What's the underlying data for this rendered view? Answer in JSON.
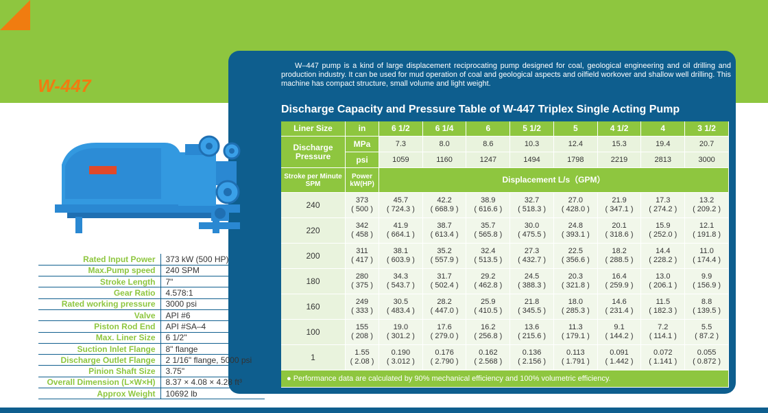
{
  "model": "W-447",
  "intro": "W–447 pump is a kind of large displacement reciprocating pump designed for coal, geological engineering and oil drilling and production industry. It can be used for mud operation of coal and geological aspects and oilfield workover and shallow well drilling. This machine has compact structure, small volume and light weight.",
  "table_title": "Discharge Capacity and Pressure Table of W-447 Triplex Single Acting Pump",
  "table": {
    "liner_label": "Liner Size",
    "liner_unit": "in",
    "liner_sizes": [
      "6 1/2",
      "6 1/4",
      "6",
      "5 1/2",
      "5",
      "4 1/2",
      "4",
      "3 1/2"
    ],
    "pressure_label": "Discharge Pressure",
    "mpa_label": "MPa",
    "psi_label": "psi",
    "mpa_values": [
      "7.3",
      "8.0",
      "8.6",
      "10.3",
      "12.4",
      "15.3",
      "19.4",
      "20.7"
    ],
    "psi_values": [
      "1059",
      "1160",
      "1247",
      "1494",
      "1798",
      "2219",
      "2813",
      "3000"
    ],
    "spm_label_line1": "Stroke per Minute",
    "spm_label_line2": "SPM",
    "power_label_line1": "Power",
    "power_label_line2": "kW(HP)",
    "displacement_label": "Displacement   L/s（GPM）",
    "rows": [
      {
        "spm": "240",
        "kw": "373",
        "hp": "( 500 )",
        "cells": [
          [
            "45.7",
            "( 724.3 )"
          ],
          [
            "42.2",
            "( 668.9 )"
          ],
          [
            "38.9",
            "( 616.6 )"
          ],
          [
            "32.7",
            "( 518.3 )"
          ],
          [
            "27.0",
            "( 428.0 )"
          ],
          [
            "21.9",
            "( 347.1 )"
          ],
          [
            "17.3",
            "( 274.2 )"
          ],
          [
            "13.2",
            "( 209.2 )"
          ]
        ]
      },
      {
        "spm": "220",
        "kw": "342",
        "hp": "( 458 )",
        "cells": [
          [
            "41.9",
            "( 664.1 )"
          ],
          [
            "38.7",
            "( 613.4 )"
          ],
          [
            "35.7",
            "( 565.8 )"
          ],
          [
            "30.0",
            "( 475.5 )"
          ],
          [
            "24.8",
            "( 393.1 )"
          ],
          [
            "20.1",
            "( 318.6 )"
          ],
          [
            "15.9",
            "( 252.0 )"
          ],
          [
            "12.1",
            "( 191.8 )"
          ]
        ]
      },
      {
        "spm": "200",
        "kw": "311",
        "hp": "( 417 )",
        "cells": [
          [
            "38.1",
            "( 603.9 )"
          ],
          [
            "35.2",
            "( 557.9 )"
          ],
          [
            "32.4",
            "( 513.5 )"
          ],
          [
            "27.3",
            "( 432.7 )"
          ],
          [
            "22.5",
            "( 356.6 )"
          ],
          [
            "18.2",
            "( 288.5 )"
          ],
          [
            "14.4",
            "( 228.2 )"
          ],
          [
            "11.0",
            "( 174.4 )"
          ]
        ]
      },
      {
        "spm": "180",
        "kw": "280",
        "hp": "( 375 )",
        "cells": [
          [
            "34.3",
            "( 543.7 )"
          ],
          [
            "31.7",
            "( 502.4 )"
          ],
          [
            "29.2",
            "( 462.8 )"
          ],
          [
            "24.5",
            "( 388.3 )"
          ],
          [
            "20.3",
            "( 321.8 )"
          ],
          [
            "16.4",
            "( 259.9 )"
          ],
          [
            "13.0",
            "( 206.1 )"
          ],
          [
            "9.9",
            "( 156.9 )"
          ]
        ]
      },
      {
        "spm": "160",
        "kw": "249",
        "hp": "( 333 )",
        "cells": [
          [
            "30.5",
            "( 483.4 )"
          ],
          [
            "28.2",
            "( 447.0 )"
          ],
          [
            "25.9",
            "( 410.5 )"
          ],
          [
            "21.8",
            "( 345.5 )"
          ],
          [
            "18.0",
            "( 285.3 )"
          ],
          [
            "14.6",
            "( 231.4 )"
          ],
          [
            "11.5",
            "( 182.3 )"
          ],
          [
            "8.8",
            "( 139.5 )"
          ]
        ]
      },
      {
        "spm": "100",
        "kw": "155",
        "hp": "( 208 )",
        "cells": [
          [
            "19.0",
            "( 301.2 )"
          ],
          [
            "17.6",
            "( 279.0 )"
          ],
          [
            "16.2",
            "( 256.8 )"
          ],
          [
            "13.6",
            "( 215.6 )"
          ],
          [
            "11.3",
            "( 179.1 )"
          ],
          [
            "9.1",
            "( 144.2 )"
          ],
          [
            "7.2",
            "( 114.1 )"
          ],
          [
            "5.5",
            "( 87.2 )"
          ]
        ]
      },
      {
        "spm": "1",
        "kw": "1.55",
        "hp": "( 2.08 )",
        "cells": [
          [
            "0.190",
            "( 3.012 )"
          ],
          [
            "0.176",
            "( 2.790 )"
          ],
          [
            "0.162",
            "( 2.568 )"
          ],
          [
            "0.136",
            "( 2.156 )"
          ],
          [
            "0.113",
            "( 1.791 )"
          ],
          [
            "0.091",
            "( 1.442 )"
          ],
          [
            "0.072",
            "( 1.141 )"
          ],
          [
            "0.055",
            "( 0.872 )"
          ]
        ]
      }
    ],
    "footnote": "●   Performance data are calculated by 90% mechanical efficiency and 100% volumetric efficiency."
  },
  "specs": [
    {
      "label": "Rated Input Power",
      "value": "373 kW (500 HP)"
    },
    {
      "label": "Max.Pump speed",
      "value": "240 SPM"
    },
    {
      "label": "Stroke Length",
      "value": "7\""
    },
    {
      "label": "Gear Ratio",
      "value": "4.578:1"
    },
    {
      "label": "Rated working pressure",
      "value": "3000 psi"
    },
    {
      "label": "Valve",
      "value": "API #6"
    },
    {
      "label": "Piston Rod End",
      "value": "API #SA–4"
    },
    {
      "label": "Max. Liner Size",
      "value": "6 1/2\""
    },
    {
      "label": "Suction Inlet Flange",
      "value": "8\" flange"
    },
    {
      "label": "Discharge Outlet Flange",
      "value": "2 1/16\" flange, 5000 psi"
    },
    {
      "label": "Pinion Shaft Size",
      "value": "3.75\""
    },
    {
      "label": "Overall Dimension (L×W×H)",
      "value": "8.37 × 4.08 × 4.28 ft³"
    },
    {
      "label": "Approx Weight",
      "value": "10692 lb"
    }
  ],
  "colors": {
    "green": "#8ec63f",
    "blue": "#0e5e8e",
    "orange": "#f07c10"
  }
}
